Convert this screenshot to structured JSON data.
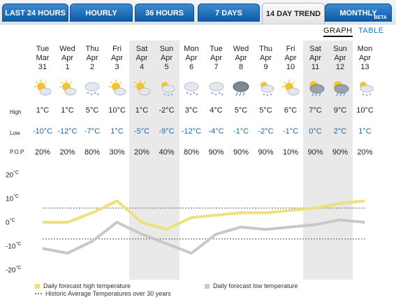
{
  "tabs": [
    {
      "label": "LAST 24 HOURS",
      "active": false
    },
    {
      "label": "HOURLY",
      "active": false
    },
    {
      "label": "36 HOURS",
      "active": false
    },
    {
      "label": "7 DAYS",
      "active": false
    },
    {
      "label": "14 DAY TREND",
      "active": true
    },
    {
      "label": "MONTHLY",
      "active": false,
      "badge": "BETA"
    }
  ],
  "view_toggle": {
    "graph": "GRAPH",
    "table": "TABLE",
    "selected": "GRAPH"
  },
  "row_labels": {
    "high": "High",
    "low": "Low",
    "pop": "P.O.P"
  },
  "days": [
    {
      "dow": "Tue",
      "mon": "Mar",
      "date": "31",
      "icon": "sun-cloud-icon",
      "high": "1°C",
      "low": "-10°C",
      "pop": "20%",
      "weekend": false
    },
    {
      "dow": "Wed",
      "mon": "Apr",
      "date": "1",
      "icon": "sun-cloud-icon",
      "high": "1°C",
      "low": "-12°C",
      "pop": "20%",
      "weekend": false
    },
    {
      "dow": "Thu",
      "mon": "Apr",
      "date": "2",
      "icon": "snow-icon",
      "high": "5°C",
      "low": "-7°C",
      "pop": "80%",
      "weekend": false
    },
    {
      "dow": "Fri",
      "mon": "Apr",
      "date": "3",
      "icon": "sun-cloud-icon",
      "high": "10°C",
      "low": "1°C",
      "pop": "30%",
      "weekend": false
    },
    {
      "dow": "Sat",
      "mon": "Apr",
      "date": "4",
      "icon": "sun-cloud-icon",
      "high": "1°C",
      "low": "-5°C",
      "pop": "20%",
      "weekend": true
    },
    {
      "dow": "Sun",
      "mon": "Apr",
      "date": "5",
      "icon": "sun-cloud-snow-icon",
      "high": "-2°C",
      "low": "-9°C",
      "pop": "40%",
      "weekend": true
    },
    {
      "dow": "Mon",
      "mon": "Apr",
      "date": "6",
      "icon": "snow-icon",
      "high": "3°C",
      "low": "-12°C",
      "pop": "80%",
      "weekend": false
    },
    {
      "dow": "Tue",
      "mon": "Apr",
      "date": "7",
      "icon": "snow-icon",
      "high": "4°C",
      "low": "-4°C",
      "pop": "90%",
      "weekend": false
    },
    {
      "dow": "Wed",
      "mon": "Apr",
      "date": "8",
      "icon": "rain-cloud-icon",
      "high": "5°C",
      "low": "-1°C",
      "pop": "90%",
      "weekend": false
    },
    {
      "dow": "Thu",
      "mon": "Apr",
      "date": "9",
      "icon": "sun-cloud-snow-icon",
      "high": "5°C",
      "low": "-2°C",
      "pop": "90%",
      "weekend": false
    },
    {
      "dow": "Fri",
      "mon": "Apr",
      "date": "10",
      "icon": "sun-cloud-icon",
      "high": "6°C",
      "low": "-1°C",
      "pop": "10%",
      "weekend": false
    },
    {
      "dow": "Sat",
      "mon": "Apr",
      "date": "11",
      "icon": "sun-rain-icon",
      "high": "7°C",
      "low": "0°C",
      "pop": "90%",
      "weekend": true
    },
    {
      "dow": "Sun",
      "mon": "Apr",
      "date": "12",
      "icon": "sun-rain-icon",
      "high": "9°C",
      "low": "2°C",
      "pop": "90%",
      "weekend": true
    },
    {
      "dow": "Mon",
      "mon": "Apr",
      "date": "13",
      "icon": "sun-cloud-snow-icon",
      "high": "10°C",
      "low": "1°C",
      "pop": "20%",
      "weekend": false
    }
  ],
  "chart_data": {
    "type": "line",
    "y_tick_labels": [
      "20",
      "10",
      "0",
      "-10",
      "-20"
    ],
    "y_unit": "°C",
    "ylim": [
      -20,
      20
    ],
    "series": [
      {
        "name": "Daily forecast high temperature",
        "color": "#f0e07a",
        "values": [
          0,
          0,
          4,
          9,
          0,
          -3,
          2,
          3,
          4,
          4,
          5,
          6,
          8,
          9
        ]
      },
      {
        "name": "Daily forecast low temperature",
        "color": "#c8c8c8",
        "values": [
          -11,
          -13,
          -8,
          0,
          -5,
          -9,
          -13,
          -5,
          -2,
          -3,
          -2,
          -1,
          1,
          0
        ]
      }
    ],
    "historic_average": {
      "name": "Historic Average Temperatures over 30 years",
      "high": 6,
      "low": -7,
      "color": "#888888"
    }
  },
  "legend": {
    "high": "Daily forecast high temperature",
    "low": "Daily forecast low temperature",
    "avg": "Historic Average Temperatures over 30 years"
  }
}
